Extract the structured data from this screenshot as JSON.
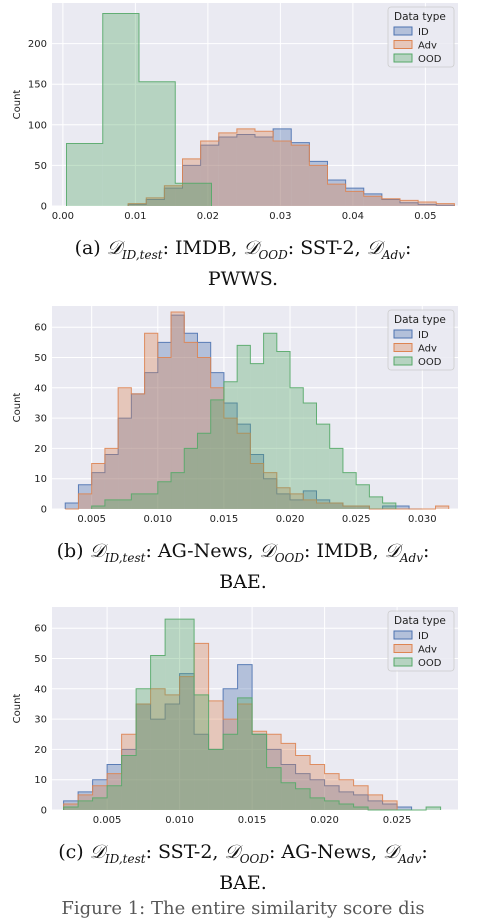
{
  "charts": [
    {
      "type": "histogram",
      "ylabel": "Count",
      "legend_title": "Data type",
      "xlim": [
        -0.0015,
        0.0545
      ],
      "ylim": [
        0,
        250
      ],
      "xticks": [
        0.0,
        0.01,
        0.02,
        0.03,
        0.04,
        0.05
      ],
      "xtick_labels": [
        "0.00",
        "0.01",
        "0.02",
        "0.03",
        "0.04",
        "0.05"
      ],
      "yticks": [
        0,
        50,
        100,
        150,
        200
      ],
      "series": [
        {
          "name": "ID",
          "color": "#4c72b0",
          "edges": [
            0.009,
            0.0115,
            0.014,
            0.0165,
            0.019,
            0.0215,
            0.024,
            0.0265,
            0.029,
            0.0315,
            0.034,
            0.0365,
            0.039,
            0.0415,
            0.044,
            0.0465,
            0.049,
            0.0515,
            0.054
          ],
          "counts": [
            2,
            8,
            22,
            50,
            75,
            85,
            88,
            85,
            95,
            78,
            55,
            32,
            22,
            15,
            8,
            4,
            2,
            1
          ]
        },
        {
          "name": "Adv",
          "color": "#dd8452",
          "edges": [
            0.009,
            0.0115,
            0.014,
            0.0165,
            0.019,
            0.0215,
            0.024,
            0.0265,
            0.029,
            0.0315,
            0.034,
            0.0365,
            0.039,
            0.0415,
            0.044,
            0.0465,
            0.049,
            0.0515,
            0.054
          ],
          "counts": [
            3,
            10,
            25,
            58,
            80,
            90,
            95,
            92,
            80,
            75,
            50,
            27,
            18,
            12,
            9,
            7,
            5,
            3
          ]
        },
        {
          "name": "OOD",
          "color": "#55a868",
          "edges": [
            0.0005,
            0.0055,
            0.0105,
            0.0155,
            0.0205
          ],
          "counts": [
            77,
            237,
            153,
            28
          ]
        }
      ]
    },
    {
      "type": "histogram",
      "ylabel": "Count",
      "legend_title": "Data type",
      "xlim": [
        0.002,
        0.0327
      ],
      "ylim": [
        0,
        67
      ],
      "xticks": [
        0.005,
        0.01,
        0.015,
        0.02,
        0.025,
        0.03
      ],
      "xtick_labels": [
        "0.005",
        "0.010",
        "0.015",
        "0.020",
        "0.025",
        "0.030"
      ],
      "yticks": [
        0,
        10,
        20,
        30,
        40,
        50,
        60
      ],
      "series": [
        {
          "name": "ID",
          "color": "#4c72b0",
          "edges": [
            0.003,
            0.004,
            0.005,
            0.006,
            0.007,
            0.008,
            0.009,
            0.01,
            0.011,
            0.012,
            0.013,
            0.014,
            0.015,
            0.016,
            0.017,
            0.018,
            0.019,
            0.02,
            0.021,
            0.022,
            0.023,
            0.024,
            0.025,
            0.026,
            0.027,
            0.028,
            0.029,
            0.03
          ],
          "counts": [
            2,
            8,
            12,
            18,
            30,
            38,
            45,
            55,
            64,
            58,
            55,
            45,
            35,
            28,
            18,
            10,
            5,
            3,
            6,
            3,
            2,
            1,
            1,
            0,
            1,
            1,
            0
          ]
        },
        {
          "name": "Adv",
          "color": "#dd8452",
          "edges": [
            0.003,
            0.004,
            0.005,
            0.006,
            0.007,
            0.008,
            0.009,
            0.01,
            0.011,
            0.012,
            0.013,
            0.014,
            0.015,
            0.016,
            0.017,
            0.018,
            0.019,
            0.02,
            0.021,
            0.022,
            0.023,
            0.024,
            0.025,
            0.026,
            0.027,
            0.028,
            0.029,
            0.03,
            0.031,
            0.032
          ],
          "counts": [
            0,
            5,
            15,
            20,
            40,
            38,
            58,
            50,
            65,
            55,
            50,
            40,
            30,
            25,
            15,
            12,
            7,
            5,
            3,
            2,
            2,
            1,
            1,
            0,
            0,
            0,
            0,
            0,
            1
          ]
        },
        {
          "name": "OOD",
          "color": "#55a868",
          "edges": [
            0.005,
            0.006,
            0.007,
            0.008,
            0.009,
            0.01,
            0.011,
            0.012,
            0.013,
            0.014,
            0.015,
            0.016,
            0.017,
            0.018,
            0.019,
            0.02,
            0.021,
            0.022,
            0.023,
            0.024,
            0.025,
            0.026,
            0.027,
            0.028
          ],
          "counts": [
            1,
            3,
            3,
            5,
            5,
            9,
            12,
            20,
            25,
            36,
            42,
            54,
            48,
            58,
            52,
            40,
            35,
            28,
            20,
            12,
            8,
            4,
            2
          ]
        }
      ]
    },
    {
      "type": "histogram",
      "ylabel": "Count",
      "legend_title": "Data type",
      "xlim": [
        0.0012,
        0.0292
      ],
      "ylim": [
        0,
        67
      ],
      "xticks": [
        0.005,
        0.01,
        0.015,
        0.02,
        0.025
      ],
      "xtick_labels": [
        "0.005",
        "0.010",
        "0.015",
        "0.020",
        "0.025"
      ],
      "yticks": [
        0,
        10,
        20,
        30,
        40,
        50,
        60
      ],
      "series": [
        {
          "name": "ID",
          "color": "#4c72b0",
          "edges": [
            0.002,
            0.003,
            0.004,
            0.005,
            0.006,
            0.007,
            0.008,
            0.009,
            0.01,
            0.011,
            0.012,
            0.013,
            0.014,
            0.015,
            0.016,
            0.017,
            0.018,
            0.019,
            0.02,
            0.021,
            0.022,
            0.023,
            0.024,
            0.025,
            0.026
          ],
          "counts": [
            3,
            6,
            10,
            15,
            20,
            35,
            30,
            35,
            45,
            25,
            20,
            40,
            48,
            25,
            20,
            15,
            12,
            10,
            8,
            6,
            5,
            3,
            2,
            1
          ]
        },
        {
          "name": "Adv",
          "color": "#dd8452",
          "edges": [
            0.002,
            0.003,
            0.004,
            0.005,
            0.006,
            0.007,
            0.008,
            0.009,
            0.01,
            0.011,
            0.012,
            0.013,
            0.014,
            0.015,
            0.016,
            0.017,
            0.018,
            0.019,
            0.02,
            0.021,
            0.022,
            0.023,
            0.024,
            0.025
          ],
          "counts": [
            2,
            5,
            8,
            12,
            25,
            35,
            40,
            38,
            44,
            55,
            36,
            30,
            35,
            26,
            25,
            22,
            18,
            15,
            12,
            10,
            8,
            5,
            3
          ]
        },
        {
          "name": "OOD",
          "color": "#55a868",
          "edges": [
            0.002,
            0.003,
            0.004,
            0.005,
            0.006,
            0.007,
            0.008,
            0.009,
            0.01,
            0.011,
            0.012,
            0.013,
            0.014,
            0.015,
            0.016,
            0.017,
            0.018,
            0.019,
            0.02,
            0.021,
            0.022,
            0.023,
            0.024,
            0.025,
            0.026,
            0.027,
            0.028
          ],
          "counts": [
            1,
            3,
            4,
            8,
            18,
            40,
            51,
            63,
            63,
            38,
            20,
            25,
            37,
            25,
            14,
            9,
            7,
            4,
            3,
            2,
            1,
            0,
            0,
            0,
            0,
            1
          ]
        }
      ]
    }
  ],
  "captions": [
    {
      "label": "(a)",
      "id": "ID,test",
      "id_val": ": IMDB, ",
      "ood": "OOD",
      "ood_val": ": SST-2, ",
      "adv": "Adv",
      "adv_val": ":",
      "line2": "PWWS."
    },
    {
      "label": "(b)",
      "id": "ID,test",
      "id_val": ": AG-News, ",
      "ood": "OOD",
      "ood_val": ": IMDB, ",
      "adv": "Adv",
      "adv_val": ":",
      "line2": "BAE."
    },
    {
      "label": "(c)",
      "id": "ID,test",
      "id_val": ": SST-2, ",
      "ood": "OOD",
      "ood_val": ": AG-News, ",
      "adv": "Adv",
      "adv_val": ":",
      "line2": "BAE."
    }
  ],
  "footer": "Figure 1: The entire similarity score dis"
}
